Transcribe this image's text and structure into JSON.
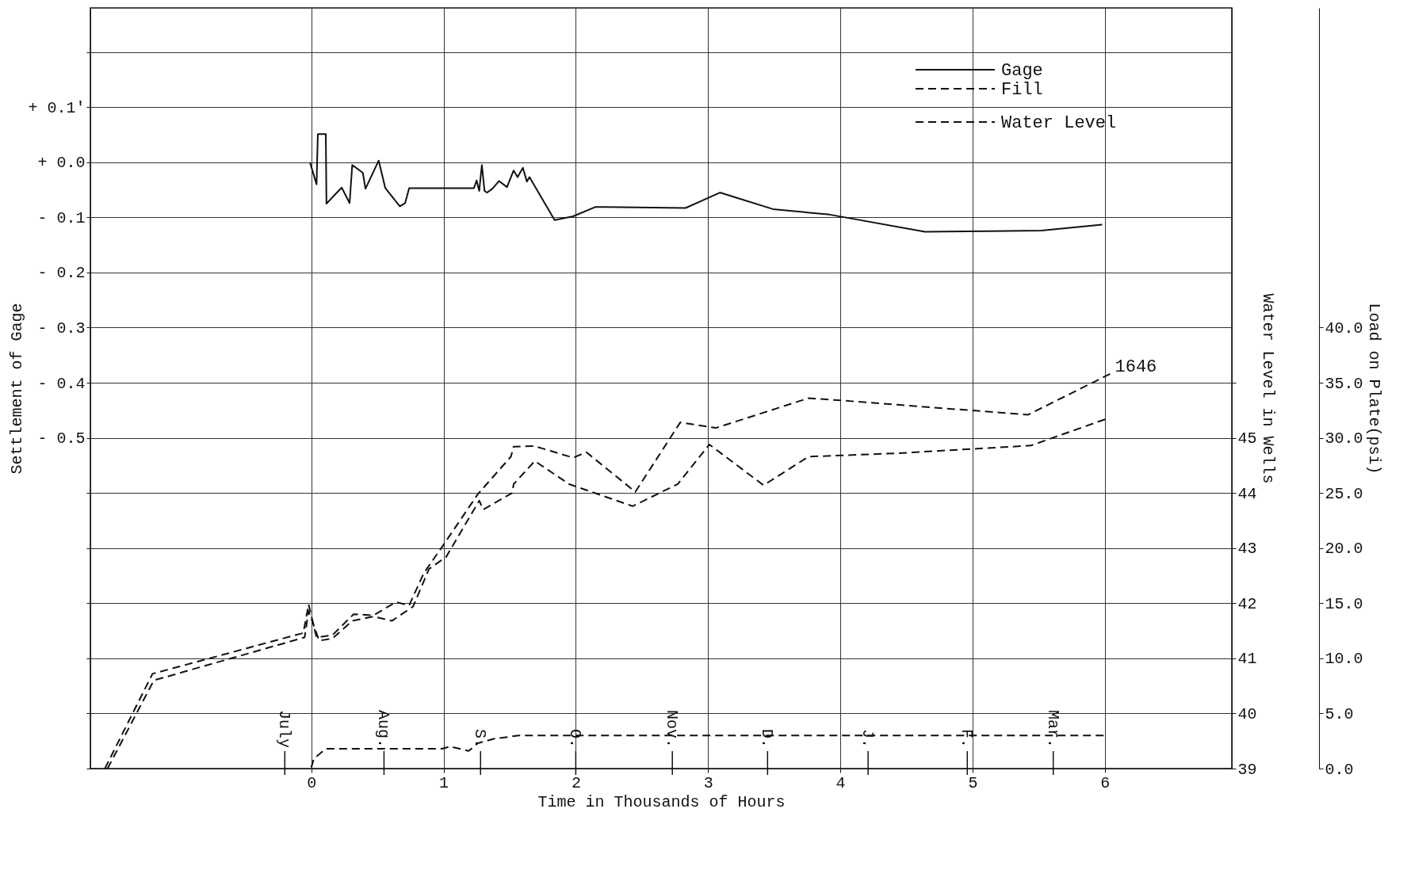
{
  "chart_data": {
    "type": "line",
    "xlabel": "Time in Thousands of Hours",
    "ylabel": "Settlement of Gage",
    "y2label": "Load on Plate(psi)",
    "y3label": "Water Level in Wells",
    "xlim": [
      -1.67,
      6.96
    ],
    "xticks": [
      0,
      1,
      2,
      3,
      4,
      5,
      6
    ],
    "ylim": [
      -1.1,
      0.28
    ],
    "yticks": [
      {
        "value": -1.1,
        "label": null
      },
      {
        "value": -1.0,
        "label": null
      },
      {
        "value": -0.9,
        "label": null
      },
      {
        "value": -0.8,
        "label": null
      },
      {
        "value": -0.7,
        "label": null
      },
      {
        "value": -0.6,
        "label": null
      },
      {
        "value": -0.5,
        "label": "- 0.5"
      },
      {
        "value": -0.4,
        "label": "- 0.4"
      },
      {
        "value": -0.3,
        "label": "- 0.3"
      },
      {
        "value": -0.2,
        "label": "- 0.2"
      },
      {
        "value": -0.1,
        "label": "- 0.1"
      },
      {
        "value": 0.0,
        "label": "+ 0.0"
      },
      {
        "value": 0.1,
        "label": "+ 0.1′"
      },
      {
        "value": 0.2,
        "label": null
      }
    ],
    "y2lim": [
      0,
      69
    ],
    "y2ticks": [
      {
        "value": 0,
        "label": "0.0"
      },
      {
        "value": 5,
        "label": "5.0"
      },
      {
        "value": 10,
        "label": "10.0"
      },
      {
        "value": 15,
        "label": "15.0"
      },
      {
        "value": 20,
        "label": "20.0"
      },
      {
        "value": 25,
        "label": "25.0"
      },
      {
        "value": 30,
        "label": "30.0"
      },
      {
        "value": 35,
        "label": "35.0"
      },
      {
        "value": 40,
        "label": "40.0"
      }
    ],
    "y3lim": [
      39,
      52.8
    ],
    "y3ticks": [
      39,
      40,
      41,
      42,
      43,
      44,
      45,
      {
        "value": 46,
        "label": null
      }
    ],
    "annotations": [
      "1646"
    ],
    "ref_lines": [
      {
        "axis": "x",
        "value": -0.2,
        "label": "July"
      },
      {
        "axis": "x",
        "value": 0.55,
        "label": "Aug."
      },
      {
        "axis": "x",
        "value": 1.28,
        "label": "S."
      },
      {
        "axis": "x",
        "value": 2.0,
        "label": "O."
      },
      {
        "axis": "x",
        "value": 2.73,
        "label": "Nov."
      },
      {
        "axis": "x",
        "value": 3.45,
        "label": "D."
      },
      {
        "axis": "x",
        "value": 4.21,
        "label": "J."
      },
      {
        "axis": "x",
        "value": 4.96,
        "label": "F."
      },
      {
        "axis": "x",
        "value": 5.61,
        "label": "Mar."
      }
    ],
    "grid": true,
    "legend": "top right",
    "series": [
      {
        "name": "Gage",
        "color": "#111111",
        "line_style": "solid",
        "x": [
          -0.01,
          0.04,
          0.05,
          0.11,
          0.115,
          0.23,
          0.29,
          0.31,
          0.39,
          0.41,
          0.51,
          0.56,
          0.67,
          0.71,
          0.74,
          1.23,
          1.25,
          1.27,
          1.29,
          1.31,
          1.33,
          1.37,
          1.42,
          1.48,
          1.53,
          1.56,
          1.6,
          1.63,
          1.65,
          1.84,
          1.98,
          2.15,
          2.83,
          3.09,
          3.49,
          3.92,
          4.64,
          5.52,
          5.98
        ],
        "values": [
          0.0,
          -0.04,
          0.051,
          0.051,
          -0.075,
          -0.046,
          -0.074,
          -0.005,
          -0.019,
          -0.048,
          0.003,
          -0.047,
          -0.08,
          -0.074,
          -0.047,
          -0.047,
          -0.033,
          -0.052,
          -0.005,
          -0.052,
          -0.055,
          -0.048,
          -0.034,
          -0.045,
          -0.015,
          -0.027,
          -0.01,
          -0.035,
          -0.027,
          -0.105,
          -0.098,
          -0.081,
          -0.083,
          -0.055,
          -0.085,
          -0.095,
          -0.126,
          -0.124,
          -0.113
        ]
      },
      {
        "name": "Fill",
        "color": "#111111",
        "line_style": "dashed",
        "axis": "y2",
        "x": [
          0.0,
          0.02,
          0.11,
          0.99,
          1.05,
          1.19,
          1.26,
          1.38,
          1.57,
          6.02
        ],
        "values": [
          0.1,
          0.9,
          1.8,
          1.8,
          2.0,
          1.6,
          2.3,
          2.7,
          3.0,
          3.0
        ]
      },
      {
        "name": "Water Level",
        "color": "#111111",
        "line_style": "dashed",
        "axis": "y3",
        "x": [
          -1.56,
          -1.2,
          -0.06,
          -0.02,
          0.04,
          0.16,
          0.32,
          0.47,
          0.64,
          0.74,
          0.85,
          1.0,
          1.26,
          1.51,
          1.53,
          1.69,
          1.98,
          2.08,
          2.45,
          2.79,
          3.06,
          3.76,
          4.0,
          4.43,
          5.42,
          6.04
        ],
        "values": [
          39.0,
          40.72,
          41.46,
          41.98,
          41.38,
          41.42,
          41.8,
          41.78,
          42.02,
          41.96,
          42.54,
          43.06,
          43.98,
          44.66,
          44.84,
          44.85,
          44.64,
          44.74,
          44.02,
          45.28,
          45.18,
          45.72,
          45.68,
          45.6,
          45.42,
          46.16
        ]
      },
      {
        "color": "#111111",
        "line_style": "dashed",
        "axis": "y2",
        "x": [
          -1.54,
          -1.19,
          -0.05,
          -0.02,
          0.06,
          0.16,
          0.31,
          0.47,
          0.61,
          0.77,
          0.89,
          1.02,
          1.27,
          1.3,
          1.52,
          1.53,
          1.69,
          1.95,
          2.43,
          2.77,
          3.01,
          3.42,
          3.76,
          4.0,
          4.43,
          5.44,
          6.03
        ],
        "values": [
          0,
          8.0,
          11.9,
          14.3,
          11.6,
          11.8,
          13.4,
          13.8,
          13.4,
          14.7,
          18.1,
          19.2,
          24.3,
          23.5,
          25.0,
          25.8,
          27.9,
          25.8,
          23.8,
          25.8,
          29.4,
          25.7,
          28.3,
          28.4,
          28.6,
          29.3,
          31.8
        ]
      }
    ]
  }
}
